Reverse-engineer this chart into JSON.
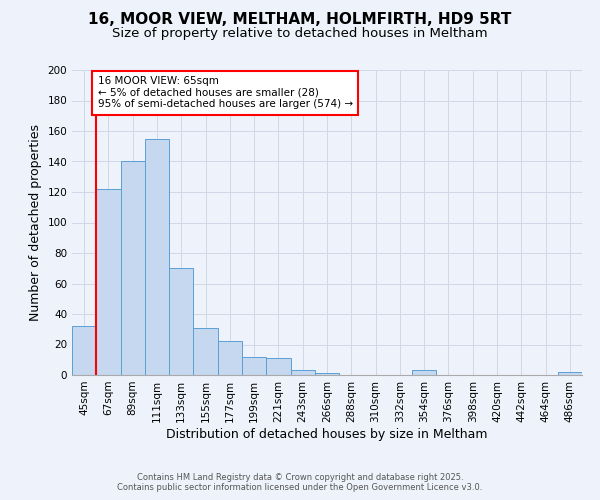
{
  "title": "16, MOOR VIEW, MELTHAM, HOLMFIRTH, HD9 5RT",
  "subtitle": "Size of property relative to detached houses in Meltham",
  "xlabel": "Distribution of detached houses by size in Meltham",
  "ylabel": "Number of detached properties",
  "categories": [
    "45sqm",
    "67sqm",
    "89sqm",
    "111sqm",
    "133sqm",
    "155sqm",
    "177sqm",
    "199sqm",
    "221sqm",
    "243sqm",
    "266sqm",
    "288sqm",
    "310sqm",
    "332sqm",
    "354sqm",
    "376sqm",
    "398sqm",
    "420sqm",
    "442sqm",
    "464sqm",
    "486sqm"
  ],
  "values": [
    32,
    122,
    140,
    155,
    70,
    31,
    22,
    12,
    11,
    3,
    1,
    0,
    0,
    0,
    3,
    0,
    0,
    0,
    0,
    0,
    2
  ],
  "bar_color": "#c5d8f0",
  "bar_edge_color": "#5a9fd4",
  "ylim": [
    0,
    200
  ],
  "yticks": [
    0,
    20,
    40,
    60,
    80,
    100,
    120,
    140,
    160,
    180,
    200
  ],
  "grid_color": "#d0d8e8",
  "background_color": "#eef3fb",
  "annotation_box_title": "16 MOOR VIEW: 65sqm",
  "annotation_line1": "← 5% of detached houses are smaller (28)",
  "annotation_line2": "95% of semi-detached houses are larger (574) →",
  "red_line_x": 0.5,
  "footer_line1": "Contains HM Land Registry data © Crown copyright and database right 2025.",
  "footer_line2": "Contains public sector information licensed under the Open Government Licence v3.0.",
  "title_fontsize": 11,
  "subtitle_fontsize": 9.5,
  "xlabel_fontsize": 9,
  "ylabel_fontsize": 9,
  "annotation_fontsize": 7.5,
  "footer_fontsize": 6,
  "tick_fontsize": 7.5
}
